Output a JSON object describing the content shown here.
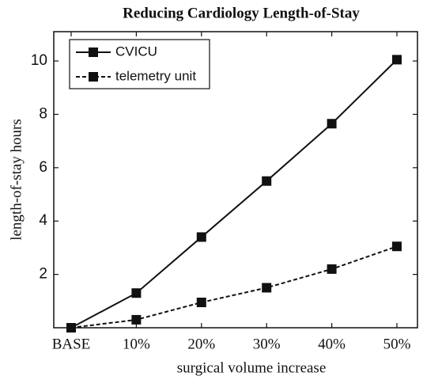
{
  "chart_data": {
    "type": "line",
    "title": "Reducing Cardiology Length-of-Stay",
    "x_label": "surgical volume increase",
    "y_label": "length-of-stay hours",
    "categories": [
      "BASE",
      "10%",
      "20%",
      "30%",
      "40%",
      "50%"
    ],
    "series": [
      {
        "name": "CVICU",
        "color": "#111111",
        "line_style": "solid",
        "marker": "square",
        "values": [
          0,
          1.3,
          3.4,
          5.5,
          7.65,
          10.05
        ]
      },
      {
        "name": "telemetry unit",
        "color": "#111111",
        "line_style": "dashed",
        "marker": "square",
        "values": [
          0,
          0.3,
          0.95,
          1.5,
          2.2,
          3.05
        ]
      }
    ],
    "ylim": [
      0,
      11.1
    ],
    "yticks": [
      2,
      4,
      6,
      8,
      10
    ],
    "grid": false,
    "legend": "upper left"
  }
}
